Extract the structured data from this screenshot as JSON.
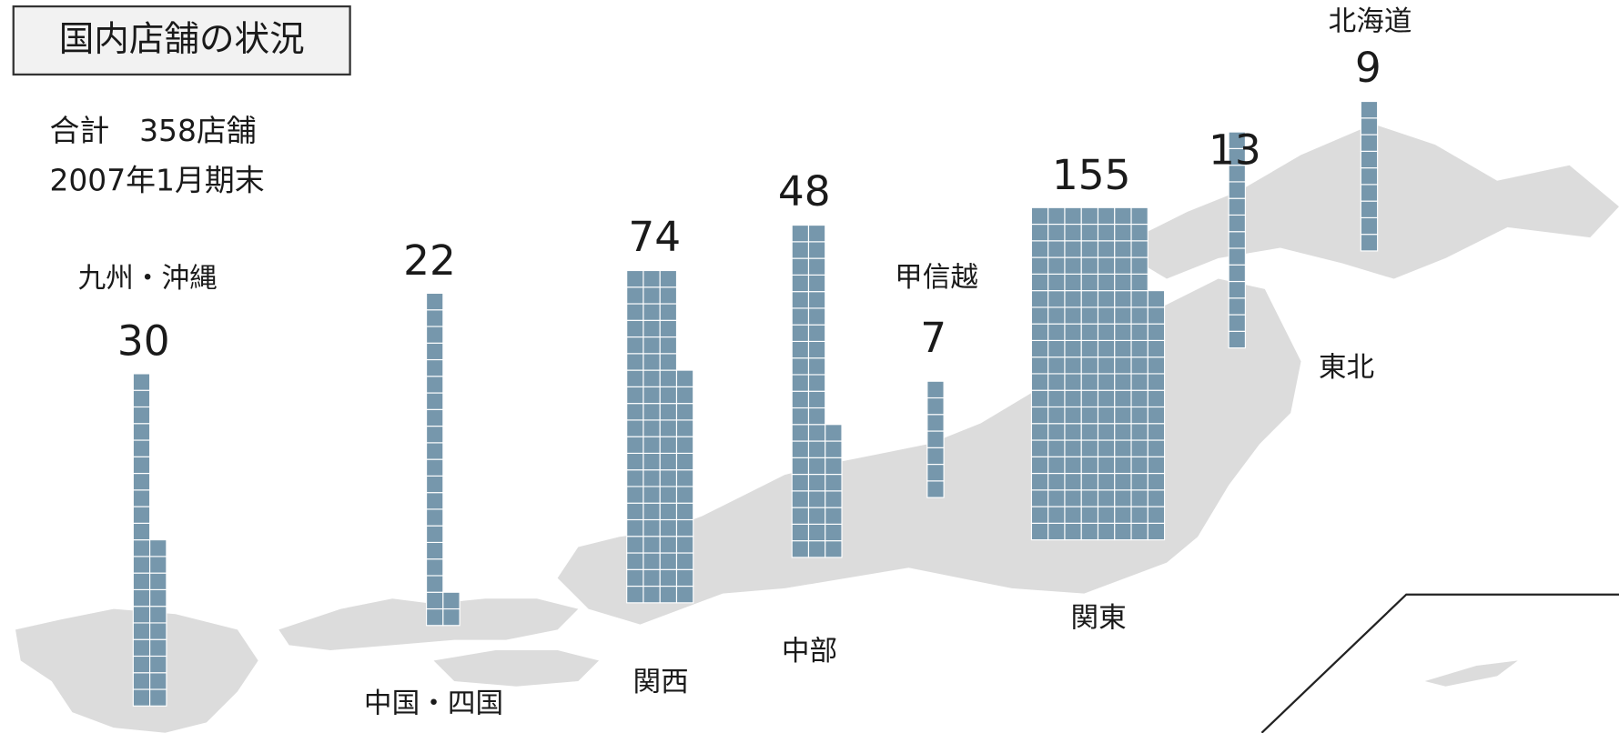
{
  "chart_data": {
    "type": "pictogram",
    "title": "国内店舗の状況",
    "subtitle": [
      "合計　358店舗",
      "2007年1月期末"
    ],
    "categories": [
      "九州・沖縄",
      "中国・四国",
      "関西",
      "中部",
      "甲信越",
      "関東",
      "東北",
      "北海道"
    ],
    "values": [
      30,
      22,
      74,
      48,
      7,
      155,
      13,
      9
    ],
    "color": "#7697ac"
  }
}
